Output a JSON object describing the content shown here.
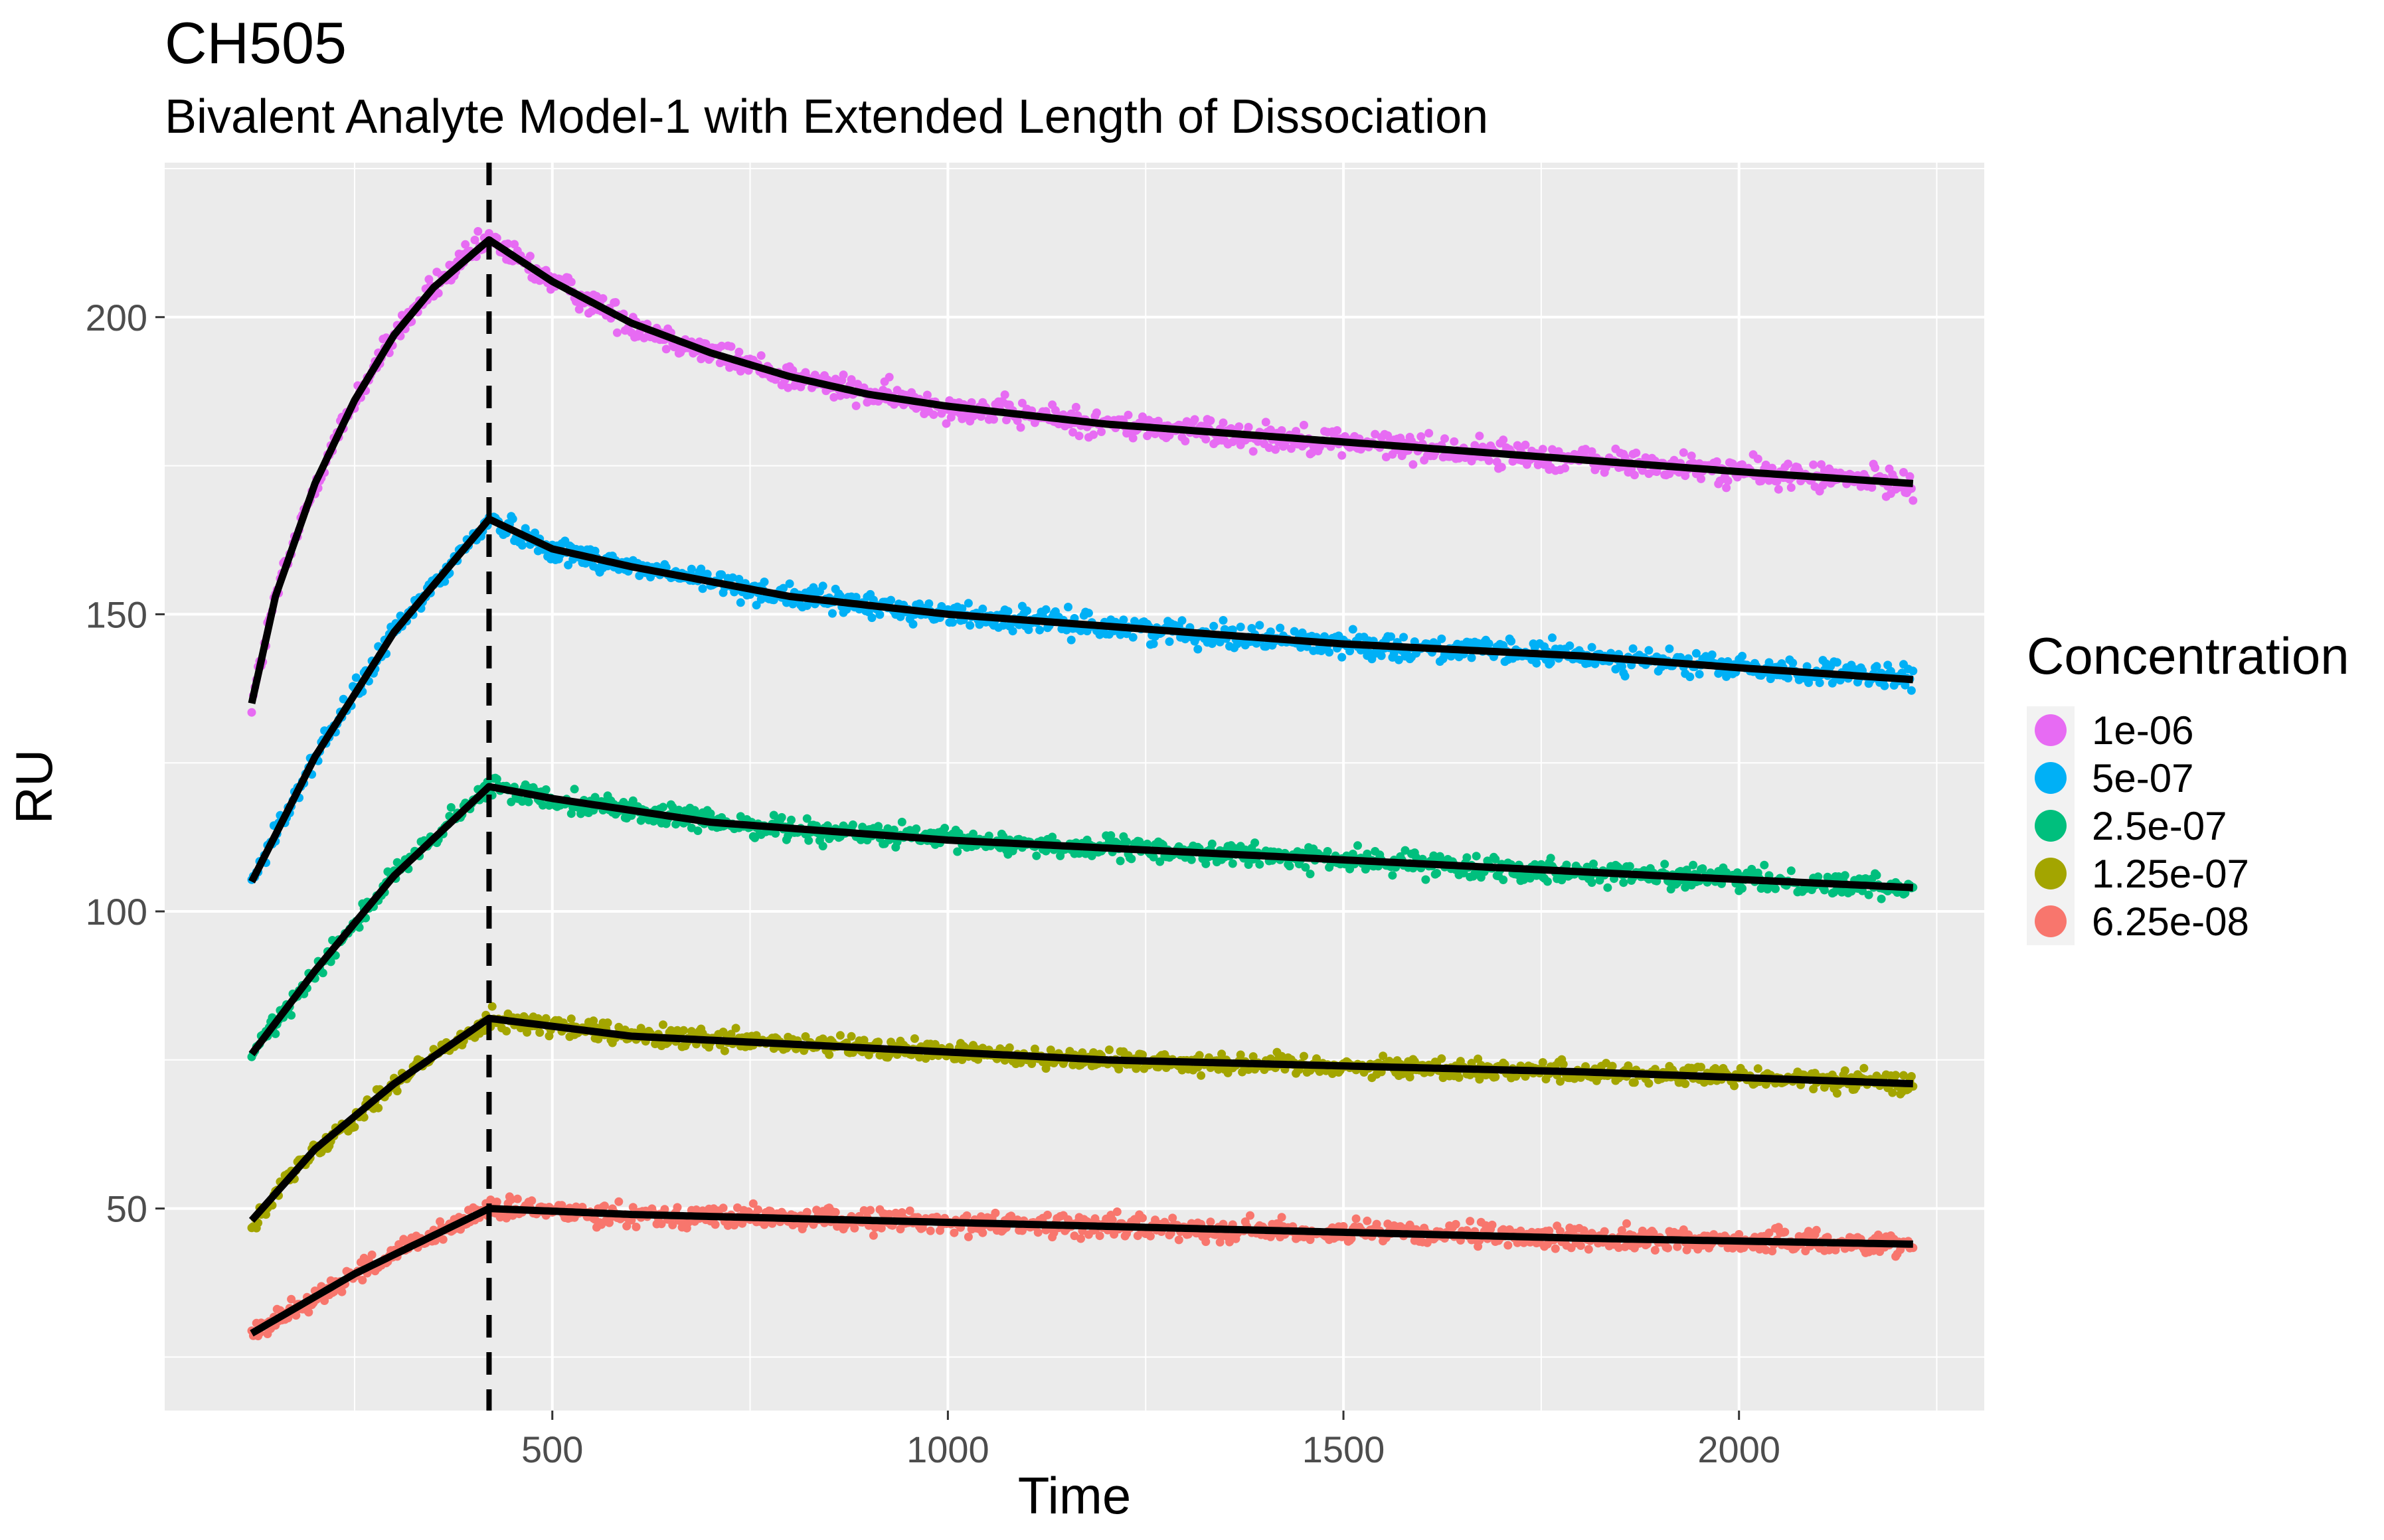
{
  "chart_data": {
    "type": "scatter",
    "title": "CH505",
    "subtitle": "Bivalent Analyte Model-1 with Extended Length of Dissociation",
    "xlabel": "Time",
    "ylabel": "RU",
    "xlim": [
      10,
      2310
    ],
    "ylim": [
      16,
      226
    ],
    "x_ticks": [
      500,
      1000,
      1500,
      2000
    ],
    "x_tick_labels": [
      "500",
      "1000",
      "1500",
      "2000"
    ],
    "y_ticks": [
      50,
      100,
      150,
      200
    ],
    "y_tick_labels": [
      "50",
      "100",
      "150",
      "200"
    ],
    "grid": true,
    "background": "#ebebeb",
    "vline": {
      "x": 420,
      "style": "dashed",
      "color": "#000000"
    },
    "legend": {
      "title": "Concentration",
      "placement": "right",
      "entries": [
        "1e-06",
        "5e-07",
        "2.5e-07",
        "1.25e-07",
        "6.25e-08"
      ]
    },
    "time_range": {
      "start": 120,
      "end": 2220,
      "step": 2
    },
    "series": [
      {
        "name": "1e-06",
        "color": "#E76BF3",
        "noise": 1.6,
        "fit": [
          [
            120,
            135
          ],
          [
            150,
            153
          ],
          [
            200,
            172
          ],
          [
            250,
            186
          ],
          [
            300,
            197
          ],
          [
            350,
            205
          ],
          [
            420,
            213
          ],
          [
            500,
            206
          ],
          [
            600,
            199
          ],
          [
            700,
            194
          ],
          [
            800,
            190
          ],
          [
            900,
            187
          ],
          [
            1000,
            185
          ],
          [
            1200,
            182
          ],
          [
            1400,
            180
          ],
          [
            1600,
            178
          ],
          [
            1800,
            176
          ],
          [
            2000,
            174
          ],
          [
            2220,
            172
          ]
        ]
      },
      {
        "name": "5e-07",
        "color": "#00B0F6",
        "noise": 1.4,
        "fit": [
          [
            120,
            105
          ],
          [
            200,
            126
          ],
          [
            300,
            147
          ],
          [
            420,
            166
          ],
          [
            500,
            161
          ],
          [
            600,
            158
          ],
          [
            800,
            153
          ],
          [
            1000,
            150
          ],
          [
            1200,
            148
          ],
          [
            1500,
            145
          ],
          [
            1800,
            143
          ],
          [
            2000,
            141
          ],
          [
            2220,
            139
          ]
        ]
      },
      {
        "name": "2.5e-07",
        "color": "#00BF7D",
        "noise": 1.3,
        "fit": [
          [
            120,
            76
          ],
          [
            200,
            90
          ],
          [
            300,
            106
          ],
          [
            420,
            121
          ],
          [
            500,
            119
          ],
          [
            700,
            115
          ],
          [
            1000,
            112
          ],
          [
            1300,
            110
          ],
          [
            1600,
            108
          ],
          [
            1900,
            106
          ],
          [
            2220,
            104
          ]
        ]
      },
      {
        "name": "1.25e-07",
        "color": "#A3A500",
        "noise": 1.2,
        "fit": [
          [
            120,
            48
          ],
          [
            200,
            60
          ],
          [
            300,
            71
          ],
          [
            420,
            82
          ],
          [
            600,
            79
          ],
          [
            900,
            77
          ],
          [
            1200,
            75
          ],
          [
            1500,
            74
          ],
          [
            1800,
            73
          ],
          [
            2220,
            71
          ]
        ]
      },
      {
        "name": "6.25e-08",
        "color": "#F8766D",
        "noise": 1.3,
        "fit": [
          [
            120,
            29
          ],
          [
            250,
            39
          ],
          [
            420,
            50
          ],
          [
            600,
            49
          ],
          [
            900,
            48
          ],
          [
            1200,
            47
          ],
          [
            1500,
            46
          ],
          [
            1800,
            45
          ],
          [
            2220,
            44
          ]
        ]
      }
    ]
  }
}
